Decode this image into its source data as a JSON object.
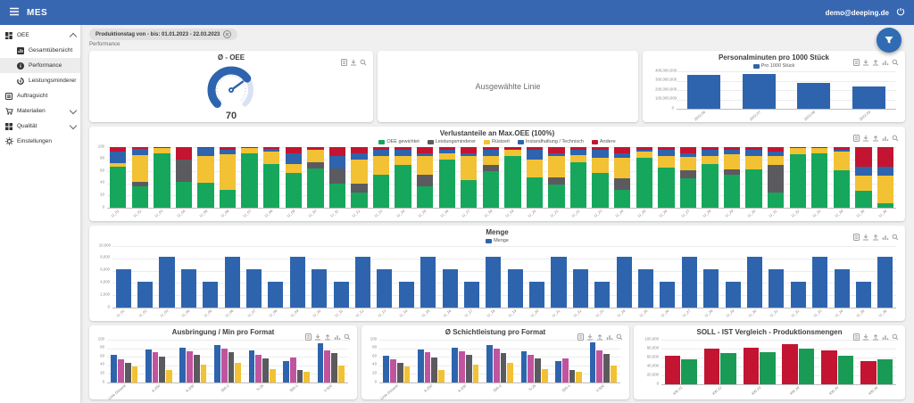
{
  "topbar": {
    "title": "MES",
    "user": "demo@deeping.de"
  },
  "sidebar": {
    "items": [
      {
        "label": "OEE"
      },
      {
        "label": "Gesamtübersicht"
      },
      {
        "label": "Performance"
      },
      {
        "label": "Leistungsminderer"
      },
      {
        "label": "Auftragsicht"
      },
      {
        "label": "Materialien"
      },
      {
        "label": "Qualität"
      },
      {
        "label": "Einstellungen"
      }
    ]
  },
  "filter_chip": {
    "label": "Produktionstag von - bis: 01.01.2023 - 22.03.2023"
  },
  "breadcrumb": "Performance",
  "selected_line_card": {
    "text": "Ausgewählte Linie"
  },
  "charts": {
    "oee_gauge": {
      "type": "gauge",
      "title": "Ø - OEE",
      "value": 70,
      "min": 0,
      "max": 100,
      "value_label": "70",
      "color": "#2e64ad",
      "track_color": "#d9e2f3"
    },
    "personalminuten": {
      "type": "bar",
      "title": "Personalminuten pro 1000 Stück",
      "legend": [
        {
          "label": "Pro 1000 Stück",
          "color": "#2e64ad"
        }
      ],
      "categories": [
        "2022.06",
        "2022.07",
        "2022.08",
        "2022.09"
      ],
      "series": [
        {
          "name": "Pro 1000 Stück",
          "color": "#2e64ad",
          "values": [
            360000000,
            370000000,
            280000000,
            235000000
          ]
        }
      ],
      "ymax": 400000000,
      "yticks": [
        "0",
        "100,000,000",
        "200,000,000",
        "300,000,000",
        "400,000,000"
      ],
      "ylabel_width": 32,
      "xlabel_height": 12,
      "bar_pct": 60
    },
    "verlustanteile": {
      "type": "bar",
      "stacked": true,
      "title": "Verlustanteile an Max.OEE (100%)",
      "legend": [
        {
          "label": "OEE gewichtet",
          "color": "#16a75c"
        },
        {
          "label": "Leistungsminderer",
          "color": "#5b5b5f"
        },
        {
          "label": "Rüstzeit",
          "color": "#f2c234"
        },
        {
          "label": "Instandhaltung / Technisch",
          "color": "#2e64ad"
        },
        {
          "label": "Andere",
          "color": "#c31432"
        }
      ],
      "categories": [
        "LI_01",
        "LI_02",
        "LI_03",
        "LI_04",
        "LI_05",
        "LI_06",
        "LI_07",
        "LI_08",
        "LI_09",
        "LI_10",
        "LI_11",
        "LI_12",
        "LI_13",
        "LI_14",
        "LI_15",
        "LI_16",
        "LI_17",
        "LI_18",
        "LI_19",
        "LI_20",
        "LI_21",
        "LI_22",
        "LI_23",
        "LI_24",
        "LI_25",
        "LI_26",
        "LI_27",
        "LI_28",
        "LI_29",
        "LI_30",
        "LI_31",
        "LI_32",
        "LI_33",
        "LI_34",
        "LI_35",
        "LI_36"
      ],
      "series": [
        {
          "name": "OEE gewichtet",
          "color": "#16a75c",
          "values": [
            68,
            35,
            90,
            42,
            41,
            30,
            90,
            72,
            57,
            65,
            40,
            25,
            55,
            70,
            35,
            80,
            45,
            60,
            85,
            50,
            38,
            75,
            58,
            30,
            82,
            66,
            48,
            72,
            55,
            63,
            25,
            88,
            90,
            62,
            28,
            8
          ]
        },
        {
          "name": "Leistungsminderer",
          "color": "#5b5b5f",
          "values": [
            0,
            7,
            0,
            38,
            0,
            0,
            0,
            0,
            0,
            10,
            25,
            15,
            0,
            0,
            20,
            0,
            0,
            10,
            0,
            0,
            12,
            0,
            0,
            18,
            0,
            0,
            14,
            0,
            8,
            0,
            45,
            0,
            0,
            0,
            0,
            0
          ]
        },
        {
          "name": "Rüstzeit",
          "color": "#f2c234",
          "values": [
            5,
            45,
            8,
            0,
            45,
            58,
            8,
            20,
            15,
            20,
            0,
            40,
            30,
            15,
            30,
            10,
            40,
            15,
            10,
            30,
            35,
            12,
            25,
            35,
            10,
            20,
            22,
            14,
            25,
            22,
            15,
            10,
            8,
            30,
            25,
            45
          ]
        },
        {
          "name": "Instandhaltung / Technisch",
          "color": "#2e64ad",
          "values": [
            20,
            10,
            0,
            0,
            12,
            8,
            0,
            5,
            18,
            0,
            20,
            10,
            10,
            10,
            5,
            5,
            5,
            10,
            0,
            15,
            5,
            8,
            12,
            7,
            3,
            9,
            6,
            9,
            7,
            10,
            7,
            0,
            0,
            3,
            15,
            14
          ]
        },
        {
          "name": "Andere",
          "color": "#c31432",
          "values": [
            7,
            3,
            2,
            20,
            2,
            4,
            2,
            3,
            10,
            5,
            15,
            10,
            5,
            5,
            10,
            5,
            10,
            5,
            5,
            5,
            10,
            5,
            5,
            10,
            5,
            5,
            10,
            5,
            5,
            5,
            8,
            2,
            2,
            5,
            32,
            33
          ]
        }
      ],
      "ymax": 100,
      "yticks": [
        "0",
        "20",
        "40",
        "60",
        "80",
        "100"
      ],
      "ylabel_width": 14,
      "xlabel_height": 12,
      "bar_pct": 75
    },
    "menge": {
      "type": "bar",
      "title": "Menge",
      "legend": [
        {
          "label": "Menge",
          "color": "#2e64ad"
        }
      ],
      "categories": [
        "LI_01",
        "LI_02",
        "LI_03",
        "LI_04",
        "LI_05",
        "LI_06",
        "LI_07",
        "LI_08",
        "LI_09",
        "LI_10",
        "LI_11",
        "LI_12",
        "LI_13",
        "LI_14",
        "LI_15",
        "LI_16",
        "LI_17",
        "LI_18",
        "LI_19",
        "LI_20",
        "LI_21",
        "LI_22",
        "LI_23",
        "LI_24",
        "LI_25",
        "LI_26",
        "LI_27",
        "LI_28",
        "LI_29",
        "LI_30",
        "LI_31",
        "LI_32",
        "LI_33",
        "LI_34",
        "LI_35",
        "LI_36"
      ],
      "series": [
        {
          "name": "Menge",
          "color": "#2e64ad",
          "values": [
            6200,
            4200,
            8300,
            6200,
            4200,
            8300,
            6200,
            4200,
            8300,
            6200,
            4200,
            8300,
            6200,
            4200,
            8300,
            6200,
            4200,
            8300,
            6200,
            4200,
            8300,
            6200,
            4200,
            8300,
            6200,
            4200,
            8300,
            6200,
            4200,
            8300,
            6200,
            4200,
            8300,
            6200,
            4200,
            8300
          ]
        }
      ],
      "ymax": 10000,
      "yticks": [
        "0",
        "2,000",
        "4,000",
        "6,000",
        "8,000",
        "10,000"
      ],
      "ylabel_width": 20,
      "xlabel_height": 12,
      "bar_pct": 70
    },
    "ausbringung": {
      "type": "bar",
      "title": "Ausbringung / Min pro Format",
      "categories": [
        "Linie Gesamt",
        "A-250",
        "A-200",
        "500-2",
        "S-25",
        "500-1",
        "V-500"
      ],
      "series": [
        {
          "color": "#2e64ad",
          "values": [
            65,
            78,
            82,
            88,
            74,
            50,
            92
          ]
        },
        {
          "color": "#c1549e",
          "values": [
            55,
            70,
            72,
            80,
            65,
            58,
            75
          ]
        },
        {
          "color": "#5b5b5f",
          "values": [
            45,
            60,
            65,
            70,
            57,
            30,
            68
          ]
        },
        {
          "color": "#f2c234",
          "values": [
            38,
            30,
            42,
            45,
            32,
            25,
            40
          ]
        }
      ],
      "ymax": 100,
      "yticks": [
        "0",
        "20",
        "40",
        "60",
        "80",
        "100"
      ],
      "ylabel_width": 14,
      "xlabel_height": 16,
      "bar_pct": 78
    },
    "schichtleistung": {
      "type": "bar",
      "title": "Ø Schichtleistung pro Format",
      "categories": [
        "Linie Gesamt",
        "A-250",
        "A-200",
        "500-2",
        "S-25",
        "500-1",
        "V-500"
      ],
      "series": [
        {
          "color": "#2e64ad",
          "values": [
            63,
            78,
            82,
            88,
            73,
            50,
            93
          ]
        },
        {
          "color": "#c1549e",
          "values": [
            55,
            70,
            72,
            80,
            64,
            57,
            74
          ]
        },
        {
          "color": "#5b5b5f",
          "values": [
            45,
            58,
            64,
            68,
            56,
            30,
            67
          ]
        },
        {
          "color": "#f2c234",
          "values": [
            37,
            30,
            42,
            45,
            32,
            26,
            40
          ]
        }
      ],
      "ymax": 100,
      "yticks": [
        "0",
        "20",
        "40",
        "60",
        "80",
        "100"
      ],
      "ylabel_width": 14,
      "xlabel_height": 16,
      "bar_pct": 78
    },
    "soll_ist": {
      "type": "bar",
      "title": "SOLL - IST Vergleich - Produktionsmengen",
      "categories": [
        "KW 21",
        "KW 22",
        "KW 23",
        "KW 24",
        "KW 25",
        "KW 26"
      ],
      "series": [
        {
          "color": "#c31432",
          "values": [
            65000,
            81000,
            83000,
            90000,
            76000,
            52000
          ]
        },
        {
          "color": "#1a9b55",
          "values": [
            57000,
            71000,
            72000,
            80000,
            64000,
            57000
          ]
        }
      ],
      "ymax": 100000,
      "yticks": [
        "0",
        "20,000",
        "40,000",
        "60,000",
        "80,000",
        "100,000"
      ],
      "ylabel_width": 25,
      "xlabel_height": 14,
      "bar_pct": 82
    }
  }
}
